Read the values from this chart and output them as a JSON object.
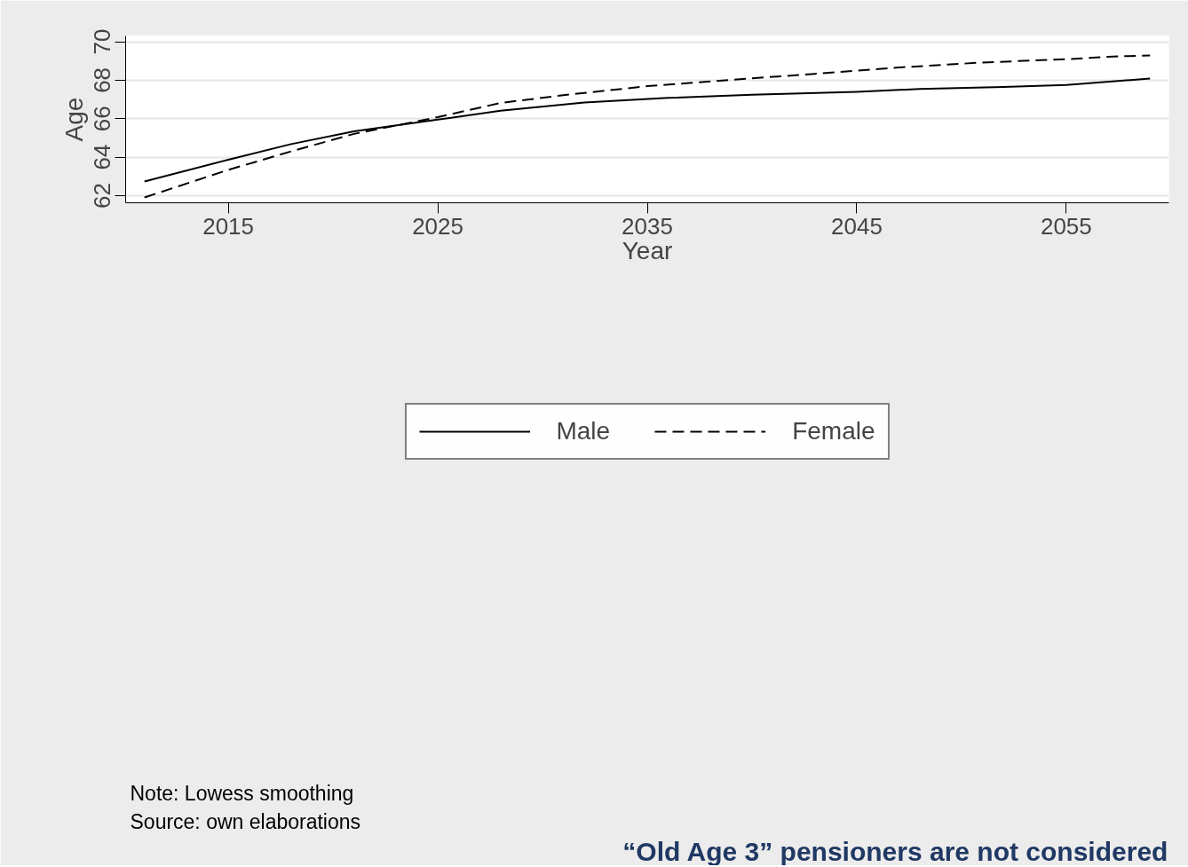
{
  "chart_data": {
    "type": "line",
    "xlabel": "Year",
    "ylabel": "Age",
    "xlim": [
      2010.1,
      2059.9
    ],
    "ylim": [
      61.63,
      70.3
    ],
    "xticks": [
      2015,
      2025,
      2035,
      2045,
      2055
    ],
    "yticks": [
      62,
      64,
      66,
      68,
      70
    ],
    "grid": "y",
    "legend": "bottom",
    "series": [
      {
        "name": "Male",
        "color": "#000000",
        "line_style": "solid",
        "x": [
          2011,
          2015,
          2018,
          2021,
          2025,
          2028,
          2032,
          2036,
          2040,
          2045,
          2048,
          2052,
          2055,
          2059
        ],
        "values": [
          62.74,
          63.87,
          64.68,
          65.34,
          65.95,
          66.41,
          66.84,
          67.08,
          67.24,
          67.4,
          67.54,
          67.65,
          67.75,
          68.09
        ]
      },
      {
        "name": "Female",
        "color": "#000000",
        "line_style": "dashed",
        "x": [
          2011,
          2015,
          2018,
          2021,
          2025,
          2028,
          2031,
          2035,
          2039,
          2043,
          2047,
          2051,
          2055,
          2057,
          2059
        ],
        "values": [
          61.91,
          63.34,
          64.3,
          65.21,
          66.08,
          66.82,
          67.22,
          67.69,
          68.02,
          68.33,
          68.66,
          68.92,
          69.09,
          69.22,
          69.29
        ]
      }
    ],
    "annotations": [
      "Note: Lowess smoothing",
      "Source: own elaborations",
      "“Old Age 3” pensioners are not considered"
    ]
  }
}
